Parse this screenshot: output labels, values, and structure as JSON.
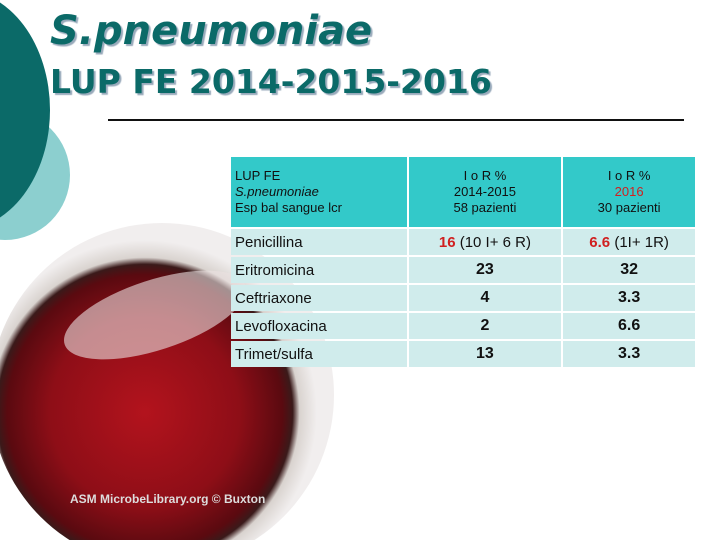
{
  "title": {
    "species": "S.pneumoniae",
    "subtitle": "LUP FE 2014-2015-2016"
  },
  "image_watermark": "ASM MicrobeLibrary.org © Buxton",
  "table": {
    "header": {
      "col0": [
        "LUP FE",
        "S.pneumoniae",
        "Esp bal sangue lcr"
      ],
      "col1": [
        "I o R %",
        "2014-2015",
        "58 pazienti"
      ],
      "col2": [
        "I o R %",
        "2016",
        "30 pazienti"
      ]
    },
    "rows": [
      {
        "drug": "Penicillina",
        "v1": "16",
        "v1_detail": " (10 I+ 6 R)",
        "v2": "6.6",
        "v2_detail": " (1I+ 1R)"
      },
      {
        "drug": "Eritromicina",
        "v1": "23",
        "v2": "32"
      },
      {
        "drug": "Ceftriaxone",
        "v1": "4",
        "v2": "3.3"
      },
      {
        "drug": "Levofloxacina",
        "v1": "2",
        "v2": "6.6"
      },
      {
        "drug": "Trimet/sulfa",
        "v1": "13",
        "v2": "3.3"
      }
    ]
  },
  "colors": {
    "accent": "#0b6a68",
    "header_bg": "#33c9c9",
    "row_bg": "#d0ecec",
    "highlight": "#d02020"
  }
}
